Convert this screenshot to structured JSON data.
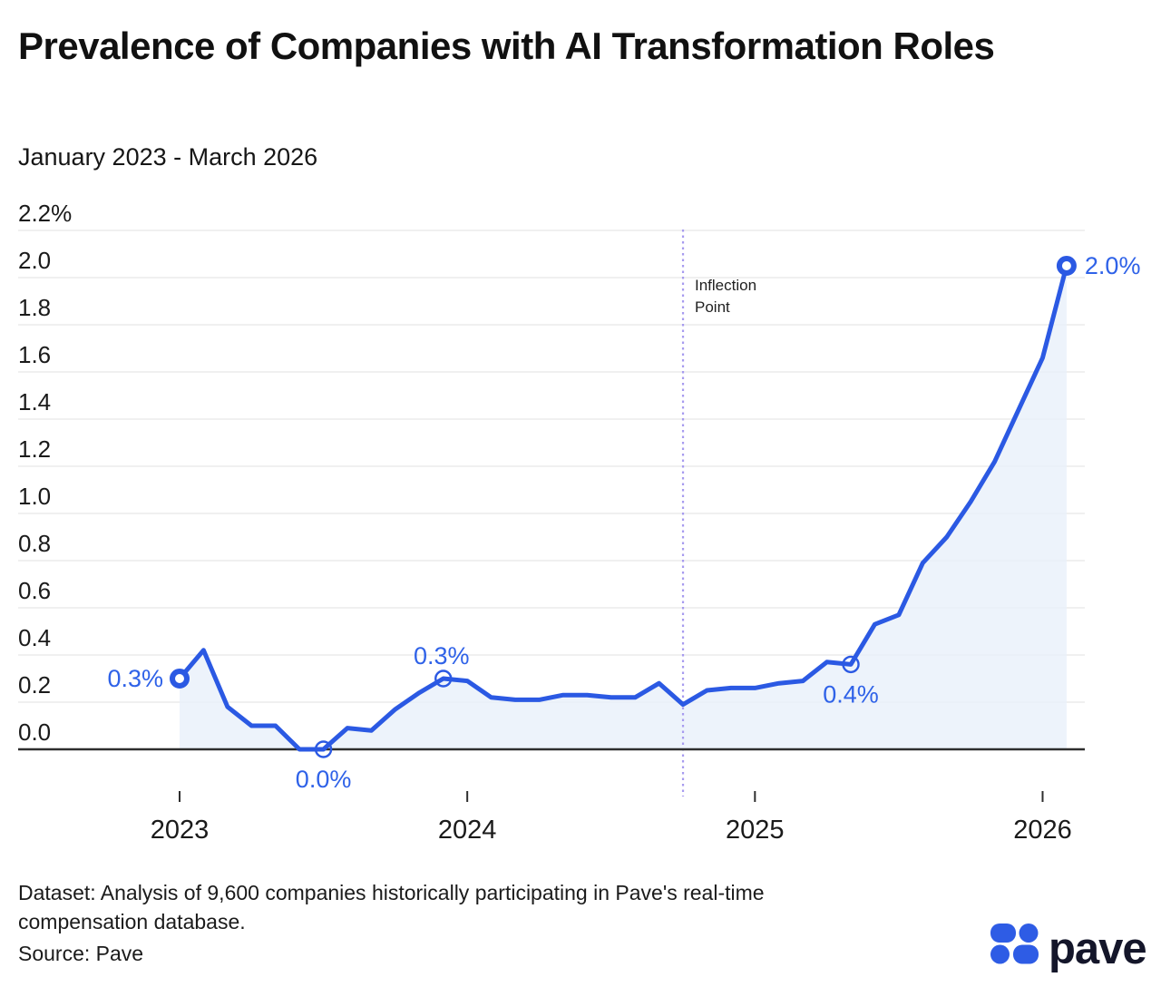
{
  "header": {
    "title": "Prevalence of Companies with AI Transformation Roles",
    "subtitle": "January 2023 - March 2026"
  },
  "chart_data": {
    "type": "area",
    "title": "Prevalence of Companies with AI Transformation Roles",
    "subtitle_range": "January 2023 - March 2026",
    "unit": "%",
    "months": [
      "Jan 2023",
      "Feb 2023",
      "Mar 2023",
      "Apr 2023",
      "May 2023",
      "Jun 2023",
      "Jul 2023",
      "Aug 2023",
      "Sep 2023",
      "Oct 2023",
      "Nov 2023",
      "Dec 2023",
      "Jan 2024",
      "Feb 2024",
      "Mar 2024",
      "Apr 2024",
      "May 2024",
      "Jun 2024",
      "Jul 2024",
      "Aug 2024",
      "Sep 2024",
      "Oct 2024",
      "Nov 2024",
      "Dec 2024",
      "Jan 2025",
      "Feb 2025",
      "Mar 2025",
      "Apr 2025",
      "May 2025",
      "Jun 2025",
      "Jul 2025",
      "Aug 2025",
      "Sep 2025",
      "Oct 2025",
      "Nov 2025",
      "Dec 2025",
      "Jan 2026",
      "Feb 2026"
    ],
    "values": [
      0.3,
      0.42,
      0.18,
      0.1,
      0.1,
      0.0,
      0.0,
      0.09,
      0.08,
      0.17,
      0.24,
      0.3,
      0.29,
      0.22,
      0.21,
      0.21,
      0.23,
      0.23,
      0.22,
      0.22,
      0.28,
      0.19,
      0.25,
      0.26,
      0.26,
      0.28,
      0.29,
      0.37,
      0.36,
      0.53,
      0.57,
      0.79,
      0.9,
      1.05,
      1.22,
      1.44,
      1.66,
      2.05
    ],
    "labeled_points": [
      {
        "index": 0,
        "month": "Jan 2023",
        "text": "0.3%",
        "marker": "bold",
        "side": "left"
      },
      {
        "index": 6,
        "month": "Jul 2023",
        "text": "0.0%",
        "marker": "thin",
        "side": "below"
      },
      {
        "index": 11,
        "month": "Dec 2023",
        "text": "0.3%",
        "marker": "thin",
        "side": "above"
      },
      {
        "index": 28,
        "month": "May 2025",
        "text": "0.4%",
        "marker": "thin",
        "side": "below"
      },
      {
        "index": 37,
        "month": "Feb 2026",
        "text": "2.0%",
        "marker": "bold",
        "side": "right"
      }
    ],
    "annotation": {
      "text": "Inflection Point",
      "index": 21,
      "month": "Oct 2024"
    },
    "y_axis": {
      "range": [
        0,
        2.2
      ],
      "grid": true,
      "ticks": [
        {
          "label": "2.2%",
          "value": 2.2
        },
        {
          "label": "2.0",
          "value": 2.0
        },
        {
          "label": "1.8",
          "value": 1.8
        },
        {
          "label": "1.6",
          "value": 1.6
        },
        {
          "label": "1.4",
          "value": 1.4
        },
        {
          "label": "1.2",
          "value": 1.2
        },
        {
          "label": "1.0",
          "value": 1.0
        },
        {
          "label": "0.8",
          "value": 0.8
        },
        {
          "label": "0.6",
          "value": 0.6
        },
        {
          "label": "0.4",
          "value": 0.4
        },
        {
          "label": "0.2",
          "value": 0.2
        },
        {
          "label": "0.0",
          "value": 0.0
        }
      ]
    },
    "x_axis": {
      "ticks": [
        {
          "label": "2023",
          "index": 0
        },
        {
          "label": "2024",
          "index": 12
        },
        {
          "label": "2025",
          "index": 24
        },
        {
          "label": "2026",
          "index": 36
        }
      ]
    },
    "colors": {
      "line": "#2B59E3",
      "label_blue": "#2F62E8",
      "area_fill": "#E9F0FA",
      "grid": "#E7E7E7",
      "axis": "#2E2E2E",
      "inflection_line": "#A79BEF",
      "tick_text": "#1A1A1A",
      "logo_blue": "#2E5CE5",
      "logo_text": "#14162A"
    }
  },
  "footer": {
    "dataset_note": "Dataset: Analysis of 9,600 companies historically participating in Pave's real-time compensation database.",
    "source": "Source: Pave",
    "logo_text": "pave"
  }
}
